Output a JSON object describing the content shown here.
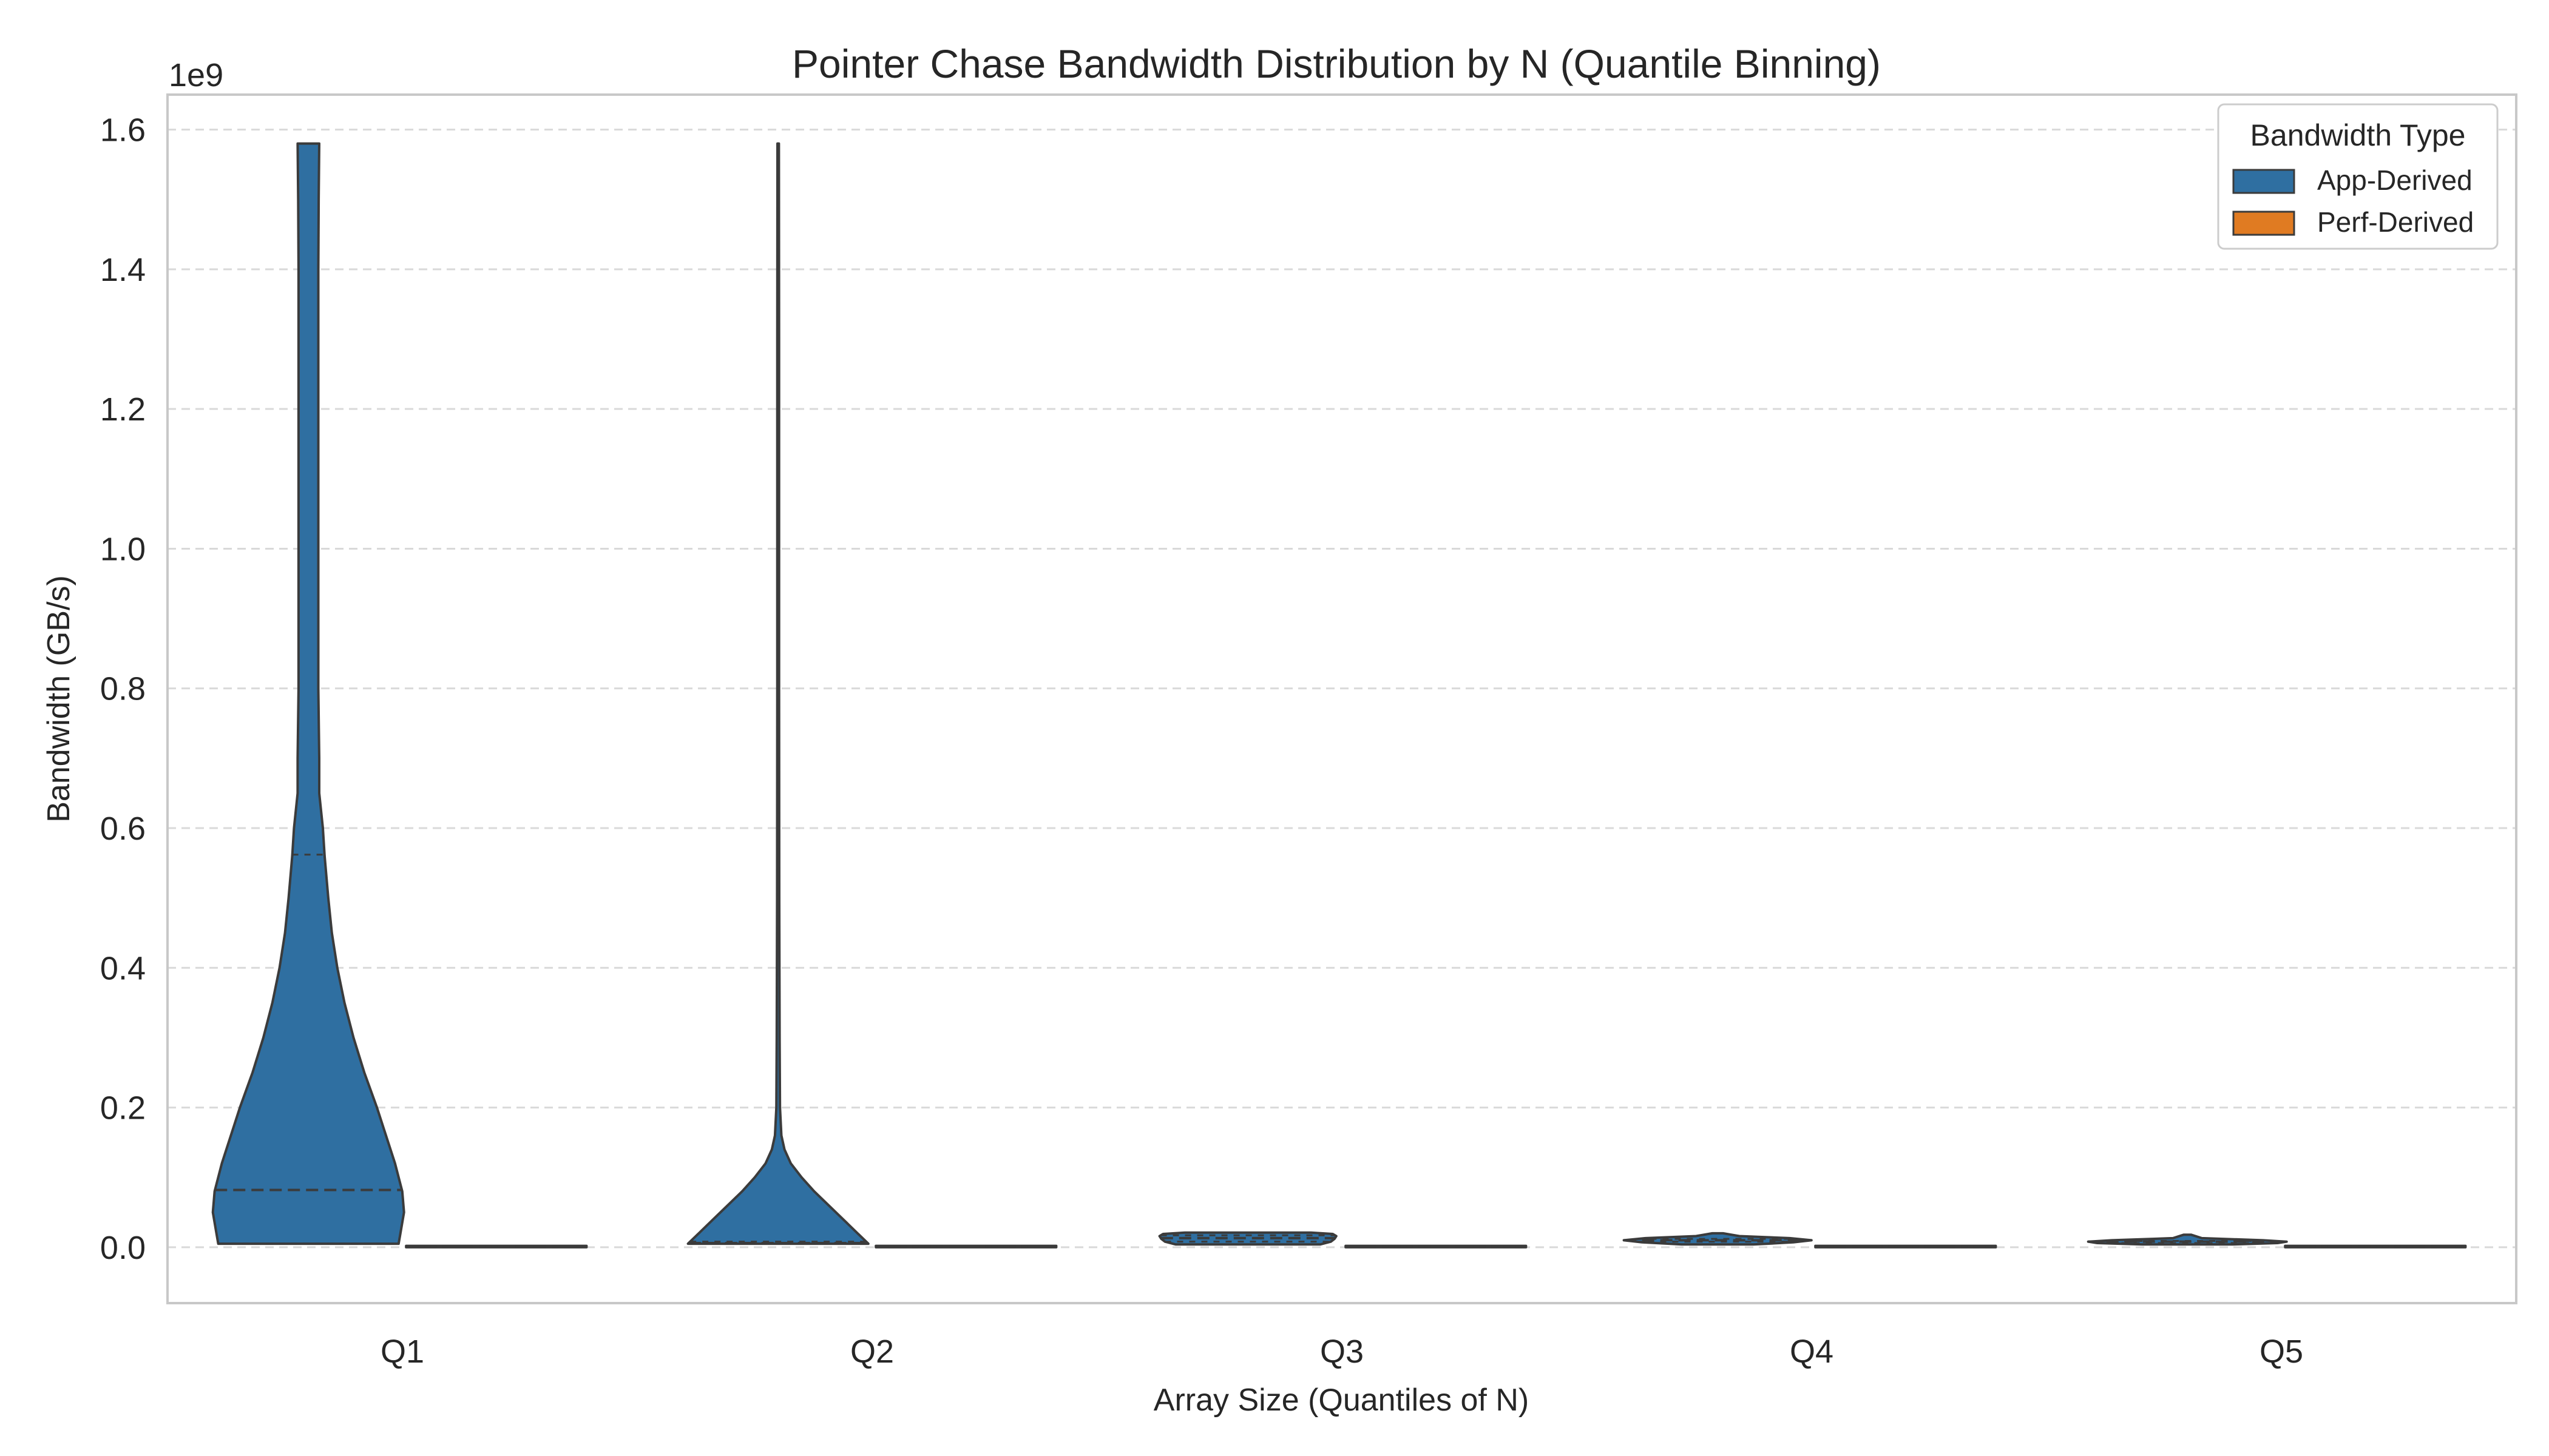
{
  "chart_data": {
    "type": "violin",
    "title": "Pointer Chase Bandwidth Distribution by N (Quantile Binning)",
    "xlabel": "Array Size (Quantiles of N)",
    "ylabel": "Bandwidth (GB/s)",
    "y_offset_label": "1e9",
    "y_scale_factor": 1000000000,
    "categories": [
      "Q1",
      "Q2",
      "Q3",
      "Q4",
      "Q5"
    ],
    "ylim": [
      -0.08,
      1.65
    ],
    "yticks": [
      0.0,
      0.2,
      0.4,
      0.6,
      0.8,
      1.0,
      1.2,
      1.4,
      1.6
    ],
    "ytick_labels": [
      "0.0",
      "0.2",
      "0.4",
      "0.6",
      "0.8",
      "1.0",
      "1.2",
      "1.4",
      "1.6"
    ],
    "grid": "y-dashed",
    "legend": {
      "title": "Bandwidth Type",
      "placement": "top-right",
      "entries": [
        "App-Derived",
        "Perf-Derived"
      ]
    },
    "colors": {
      "App-Derived": "#2f6fa1",
      "Perf-Derived": "#e07b22",
      "outline": "#3b3b3b",
      "grid": "#d9d9d9",
      "frame": "#c8c8c8"
    },
    "series": [
      {
        "name": "App-Derived",
        "violins": [
          {
            "category": "Q1",
            "profile": [
              [
                0.005,
                0.5
              ],
              [
                0.02,
                0.51
              ],
              [
                0.05,
                0.53
              ],
              [
                0.08,
                0.52
              ],
              [
                0.12,
                0.48
              ],
              [
                0.16,
                0.43
              ],
              [
                0.2,
                0.38
              ],
              [
                0.25,
                0.31
              ],
              [
                0.3,
                0.25
              ],
              [
                0.35,
                0.2
              ],
              [
                0.4,
                0.16
              ],
              [
                0.45,
                0.13
              ],
              [
                0.5,
                0.11
              ],
              [
                0.56,
                0.09
              ],
              [
                0.6,
                0.08
              ],
              [
                0.65,
                0.06
              ],
              [
                0.7,
                0.06
              ],
              [
                0.8,
                0.055
              ],
              [
                0.9,
                0.055
              ],
              [
                1.0,
                0.055
              ],
              [
                1.1,
                0.055
              ],
              [
                1.2,
                0.055
              ],
              [
                1.3,
                0.055
              ],
              [
                1.4,
                0.055
              ],
              [
                1.5,
                0.057
              ],
              [
                1.58,
                0.06
              ]
            ],
            "quartiles": [
              0.005,
              0.082,
              0.562
            ]
          },
          {
            "category": "Q2",
            "profile": [
              [
                0.005,
                0.5
              ],
              [
                0.02,
                0.44
              ],
              [
                0.04,
                0.36
              ],
              [
                0.06,
                0.28
              ],
              [
                0.08,
                0.2
              ],
              [
                0.1,
                0.13
              ],
              [
                0.12,
                0.07
              ],
              [
                0.14,
                0.035
              ],
              [
                0.16,
                0.018
              ],
              [
                0.2,
                0.01
              ],
              [
                0.3,
                0.008
              ],
              [
                0.5,
                0.006
              ],
              [
                0.8,
                0.005
              ],
              [
                1.0,
                0.005
              ],
              [
                1.3,
                0.005
              ],
              [
                1.58,
                0.004
              ]
            ],
            "quartiles": [
              0.005,
              0.006,
              0.008
            ]
          },
          {
            "category": "Q3",
            "profile": [
              [
                0.004,
                0.4
              ],
              [
                0.008,
                0.46
              ],
              [
                0.012,
                0.48
              ],
              [
                0.016,
                0.49
              ],
              [
                0.019,
                0.47
              ],
              [
                0.021,
                0.35
              ]
            ],
            "quartiles": [
              0.008,
              0.013,
              0.017
            ]
          },
          {
            "category": "Q4",
            "profile": [
              [
                0.004,
                0.2
              ],
              [
                0.007,
                0.42
              ],
              [
                0.01,
                0.52
              ],
              [
                0.013,
                0.4
              ],
              [
                0.016,
                0.12
              ],
              [
                0.02,
                0.03
              ]
            ],
            "quartiles": [
              0.008,
              0.01,
              0.012
            ]
          },
          {
            "category": "Q5",
            "profile": [
              [
                0.004,
                0.25
              ],
              [
                0.006,
                0.5
              ],
              [
                0.008,
                0.55
              ],
              [
                0.01,
                0.42
              ],
              [
                0.013,
                0.08
              ],
              [
                0.018,
                0.02
              ]
            ],
            "quartiles": [
              0.006,
              0.008,
              0.009
            ]
          }
        ]
      },
      {
        "name": "Perf-Derived",
        "violins": [
          {
            "category": "Q1",
            "profile": [
              [
                0.0,
                0.5
              ],
              [
                0.002,
                0.5
              ]
            ],
            "quartiles": [
              0.0,
              0.001,
              0.001
            ]
          },
          {
            "category": "Q2",
            "profile": [
              [
                0.0,
                0.5
              ],
              [
                0.002,
                0.5
              ]
            ],
            "quartiles": [
              0.0,
              0.001,
              0.001
            ]
          },
          {
            "category": "Q3",
            "profile": [
              [
                0.0,
                0.5
              ],
              [
                0.002,
                0.5
              ]
            ],
            "quartiles": [
              0.0,
              0.001,
              0.001
            ]
          },
          {
            "category": "Q4",
            "profile": [
              [
                0.0,
                0.5
              ],
              [
                0.002,
                0.5
              ]
            ],
            "quartiles": [
              0.0,
              0.001,
              0.001
            ]
          },
          {
            "category": "Q5",
            "profile": [
              [
                0.0,
                0.5
              ],
              [
                0.002,
                0.5
              ]
            ],
            "quartiles": [
              0.0,
              0.001,
              0.001
            ]
          }
        ]
      }
    ]
  }
}
